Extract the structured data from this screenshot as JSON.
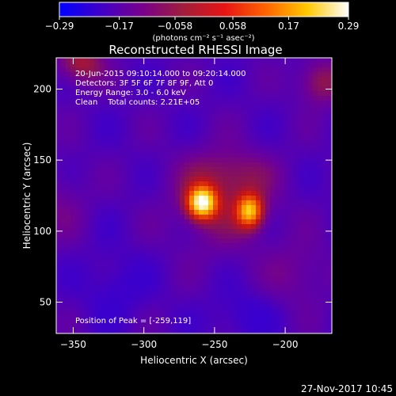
{
  "chart_data": {
    "type": "heatmap",
    "title": "Reconstructed RHESSI Image",
    "xlabel": "Heliocentric X (arcsec)",
    "ylabel": "Heliocentric Y (arcsec)",
    "xlim": [
      -362,
      -167
    ],
    "ylim": [
      28,
      222
    ],
    "x_ticks": [
      -350,
      -300,
      -250,
      -200
    ],
    "x_tick_labels": [
      "−350",
      "−300",
      "−250",
      "−200"
    ],
    "y_ticks": [
      50,
      100,
      150,
      200
    ],
    "y_tick_labels": [
      "50",
      "100",
      "150",
      "200"
    ],
    "colorbar": {
      "label": "(photons cm⁻² s⁻¹ asec⁻²)",
      "range": [
        -0.29,
        0.29
      ],
      "ticks": [
        -0.29,
        -0.17,
        -0.058,
        0.058,
        0.17,
        0.29
      ],
      "tick_labels": [
        "−0.29",
        "−0.17",
        "−0.058",
        "0.058",
        "0.17",
        "0.29"
      ],
      "colors": [
        "#0000ff",
        "#4000c8",
        "#78008c",
        "#a01e3c",
        "#e61414",
        "#ff6400",
        "#ffc800",
        "#ffffff"
      ]
    },
    "annotations": {
      "time_range": "20-Jun-2015 09:10:14.000 to 09:20:14.000",
      "detectors": "Detectors: 3F 5F 6F 7F 8F 9F, Att 0",
      "energy": "Energy Range: 3.0 - 6.0 keV",
      "clean": "Clean    Total counts: 2.21E+05",
      "peak": "Position of Peak = [-259,119]"
    },
    "peak_position": [
      -259,
      119
    ],
    "sources": [
      {
        "x": -259,
        "y": 120,
        "peak": 0.29
      },
      {
        "x": -225,
        "y": 114,
        "peak": 0.23
      }
    ],
    "footer_timestamp": "27-Nov-2017 10:45"
  }
}
